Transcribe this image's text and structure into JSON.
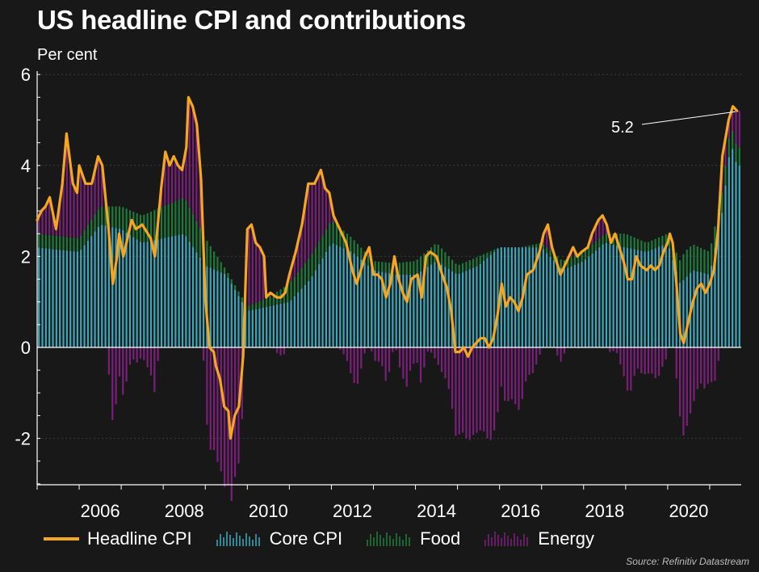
{
  "title": "US headline CPI and contributions",
  "unit_label": "Per cent",
  "source": "Source: Refinitiv Datastream",
  "colors": {
    "headline": "#f5a623",
    "core": "#3fa5b8",
    "food": "#1f7a3a",
    "energy": "#7a1f7a",
    "axis": "#ffffff",
    "grid": "#3a3a3a"
  },
  "legend": [
    {
      "key": "headline",
      "label": "Headline CPI"
    },
    {
      "key": "core",
      "label": "Core CPI"
    },
    {
      "key": "food",
      "label": "Food"
    },
    {
      "key": "energy",
      "label": "Energy"
    }
  ],
  "chart_data": {
    "type": "bar+line",
    "title": "US headline CPI and contributions",
    "ylabel": "Per cent",
    "ylim": [
      -3,
      6
    ],
    "yticks": [
      6,
      4,
      2,
      0,
      -2
    ],
    "xlim": [
      2005.0,
      2021.75
    ],
    "xticks": [
      2006,
      2008,
      2010,
      2012,
      2014,
      2016,
      2018,
      2020
    ],
    "annotation": {
      "label": "5.2",
      "x": 2021.65,
      "y": 5.2
    },
    "headline_keyframes": [
      [
        2005.0,
        2.8
      ],
      [
        2005.1,
        3.0
      ],
      [
        2005.2,
        3.1
      ],
      [
        2005.3,
        3.3
      ],
      [
        2005.45,
        2.6
      ],
      [
        2005.6,
        3.6
      ],
      [
        2005.7,
        4.7
      ],
      [
        2005.85,
        3.6
      ],
      [
        2005.95,
        3.4
      ],
      [
        2006.0,
        4.0
      ],
      [
        2006.15,
        3.6
      ],
      [
        2006.3,
        3.6
      ],
      [
        2006.45,
        4.2
      ],
      [
        2006.55,
        4.0
      ],
      [
        2006.7,
        2.6
      ],
      [
        2006.8,
        1.4
      ],
      [
        2006.9,
        2.0
      ],
      [
        2006.95,
        2.5
      ],
      [
        2007.05,
        2.0
      ],
      [
        2007.15,
        2.4
      ],
      [
        2007.25,
        2.8
      ],
      [
        2007.35,
        2.6
      ],
      [
        2007.5,
        2.7
      ],
      [
        2007.7,
        2.4
      ],
      [
        2007.8,
        2.0
      ],
      [
        2007.95,
        3.5
      ],
      [
        2008.05,
        4.3
      ],
      [
        2008.15,
        4.0
      ],
      [
        2008.25,
        4.2
      ],
      [
        2008.35,
        4.0
      ],
      [
        2008.45,
        3.9
      ],
      [
        2008.55,
        4.4
      ],
      [
        2008.6,
        5.5
      ],
      [
        2008.7,
        5.3
      ],
      [
        2008.8,
        4.9
      ],
      [
        2008.9,
        3.7
      ],
      [
        2009.0,
        1.1
      ],
      [
        2009.1,
        0.0
      ],
      [
        2009.2,
        -0.1
      ],
      [
        2009.25,
        -0.4
      ],
      [
        2009.35,
        -0.7
      ],
      [
        2009.45,
        -1.3
      ],
      [
        2009.55,
        -1.4
      ],
      [
        2009.6,
        -2.0
      ],
      [
        2009.7,
        -1.5
      ],
      [
        2009.8,
        -1.3
      ],
      [
        2009.9,
        -0.2
      ],
      [
        2010.0,
        2.6
      ],
      [
        2010.1,
        2.7
      ],
      [
        2010.2,
        2.3
      ],
      [
        2010.3,
        2.2
      ],
      [
        2010.4,
        2.0
      ],
      [
        2010.45,
        1.1
      ],
      [
        2010.55,
        1.2
      ],
      [
        2010.7,
        1.1
      ],
      [
        2010.8,
        1.1
      ],
      [
        2010.9,
        1.2
      ],
      [
        2011.0,
        1.6
      ],
      [
        2011.15,
        2.1
      ],
      [
        2011.3,
        2.7
      ],
      [
        2011.45,
        3.6
      ],
      [
        2011.6,
        3.6
      ],
      [
        2011.75,
        3.9
      ],
      [
        2011.85,
        3.5
      ],
      [
        2011.95,
        3.4
      ],
      [
        2012.05,
        2.9
      ],
      [
        2012.2,
        2.6
      ],
      [
        2012.35,
        2.3
      ],
      [
        2012.5,
        1.7
      ],
      [
        2012.6,
        1.4
      ],
      [
        2012.7,
        1.7
      ],
      [
        2012.8,
        2.0
      ],
      [
        2012.9,
        2.2
      ],
      [
        2013.0,
        1.6
      ],
      [
        2013.1,
        1.6
      ],
      [
        2013.2,
        1.5
      ],
      [
        2013.3,
        1.1
      ],
      [
        2013.4,
        1.4
      ],
      [
        2013.5,
        2.0
      ],
      [
        2013.6,
        1.5
      ],
      [
        2013.7,
        1.2
      ],
      [
        2013.8,
        1.0
      ],
      [
        2013.9,
        1.5
      ],
      [
        2014.05,
        1.6
      ],
      [
        2014.15,
        1.1
      ],
      [
        2014.25,
        2.0
      ],
      [
        2014.35,
        2.1
      ],
      [
        2014.5,
        2.0
      ],
      [
        2014.6,
        1.7
      ],
      [
        2014.75,
        1.3
      ],
      [
        2014.85,
        0.8
      ],
      [
        2014.95,
        -0.1
      ],
      [
        2015.05,
        -0.1
      ],
      [
        2015.15,
        0.0
      ],
      [
        2015.25,
        -0.2
      ],
      [
        2015.35,
        0.0
      ],
      [
        2015.45,
        0.1
      ],
      [
        2015.55,
        0.2
      ],
      [
        2015.65,
        0.2
      ],
      [
        2015.75,
        0.0
      ],
      [
        2015.85,
        0.2
      ],
      [
        2015.95,
        0.7
      ],
      [
        2016.05,
        1.4
      ],
      [
        2016.15,
        0.9
      ],
      [
        2016.25,
        1.1
      ],
      [
        2016.35,
        1.0
      ],
      [
        2016.45,
        0.8
      ],
      [
        2016.55,
        1.1
      ],
      [
        2016.65,
        1.6
      ],
      [
        2016.8,
        1.7
      ],
      [
        2016.95,
        2.1
      ],
      [
        2017.05,
        2.5
      ],
      [
        2017.15,
        2.7
      ],
      [
        2017.25,
        2.2
      ],
      [
        2017.35,
        1.9
      ],
      [
        2017.45,
        1.6
      ],
      [
        2017.6,
        1.9
      ],
      [
        2017.75,
        2.2
      ],
      [
        2017.85,
        2.0
      ],
      [
        2017.95,
        2.1
      ],
      [
        2018.1,
        2.2
      ],
      [
        2018.2,
        2.5
      ],
      [
        2018.35,
        2.8
      ],
      [
        2018.45,
        2.9
      ],
      [
        2018.55,
        2.7
      ],
      [
        2018.65,
        2.3
      ],
      [
        2018.75,
        2.5
      ],
      [
        2018.85,
        2.2
      ],
      [
        2018.95,
        1.9
      ],
      [
        2019.05,
        1.5
      ],
      [
        2019.15,
        1.5
      ],
      [
        2019.25,
        2.0
      ],
      [
        2019.35,
        1.8
      ],
      [
        2019.5,
        1.7
      ],
      [
        2019.6,
        1.8
      ],
      [
        2019.7,
        1.7
      ],
      [
        2019.8,
        1.8
      ],
      [
        2019.9,
        2.1
      ],
      [
        2020.0,
        2.3
      ],
      [
        2020.05,
        2.5
      ],
      [
        2020.12,
        2.3
      ],
      [
        2020.2,
        1.5
      ],
      [
        2020.3,
        0.3
      ],
      [
        2020.38,
        0.1
      ],
      [
        2020.5,
        0.6
      ],
      [
        2020.6,
        1.0
      ],
      [
        2020.7,
        1.3
      ],
      [
        2020.8,
        1.4
      ],
      [
        2020.9,
        1.2
      ],
      [
        2021.0,
        1.4
      ],
      [
        2021.1,
        1.7
      ],
      [
        2021.2,
        2.6
      ],
      [
        2021.3,
        4.2
      ],
      [
        2021.45,
        5.0
      ],
      [
        2021.55,
        5.3
      ],
      [
        2021.65,
        5.2
      ]
    ],
    "core_keyframes": [
      [
        2005.0,
        2.2
      ],
      [
        2006.0,
        2.1
      ],
      [
        2006.5,
        2.7
      ],
      [
        2007.0,
        2.6
      ],
      [
        2007.5,
        2.3
      ],
      [
        2008.0,
        2.4
      ],
      [
        2008.5,
        2.5
      ],
      [
        2009.0,
        1.8
      ],
      [
        2009.5,
        1.6
      ],
      [
        2010.0,
        0.8
      ],
      [
        2010.5,
        0.9
      ],
      [
        2011.0,
        1.0
      ],
      [
        2011.5,
        1.5
      ],
      [
        2012.0,
        2.3
      ],
      [
        2012.5,
        2.1
      ],
      [
        2013.0,
        1.7
      ],
      [
        2013.5,
        1.6
      ],
      [
        2014.0,
        1.6
      ],
      [
        2014.5,
        1.9
      ],
      [
        2015.0,
        1.6
      ],
      [
        2015.5,
        1.8
      ],
      [
        2016.0,
        2.2
      ],
      [
        2016.5,
        2.2
      ],
      [
        2017.0,
        2.2
      ],
      [
        2017.5,
        1.7
      ],
      [
        2018.0,
        1.9
      ],
      [
        2018.5,
        2.3
      ],
      [
        2019.0,
        2.2
      ],
      [
        2019.5,
        2.1
      ],
      [
        2020.0,
        2.3
      ],
      [
        2020.3,
        1.4
      ],
      [
        2020.6,
        1.7
      ],
      [
        2021.0,
        1.6
      ],
      [
        2021.3,
        3.0
      ],
      [
        2021.5,
        4.5
      ],
      [
        2021.65,
        4.0
      ]
    ],
    "food_keyframes": [
      [
        2005.0,
        0.3
      ],
      [
        2006.0,
        0.3
      ],
      [
        2007.0,
        0.5
      ],
      [
        2008.0,
        0.7
      ],
      [
        2008.5,
        0.8
      ],
      [
        2009.0,
        0.6
      ],
      [
        2009.5,
        0.1
      ],
      [
        2010.0,
        0.1
      ],
      [
        2010.5,
        0.2
      ],
      [
        2011.0,
        0.4
      ],
      [
        2011.5,
        0.5
      ],
      [
        2012.0,
        0.5
      ],
      [
        2012.5,
        0.3
      ],
      [
        2013.0,
        0.2
      ],
      [
        2014.0,
        0.3
      ],
      [
        2014.5,
        0.4
      ],
      [
        2015.0,
        0.2
      ],
      [
        2015.5,
        0.2
      ],
      [
        2016.0,
        0.0
      ],
      [
        2016.5,
        0.0
      ],
      [
        2017.0,
        0.1
      ],
      [
        2017.5,
        0.2
      ],
      [
        2018.0,
        0.2
      ],
      [
        2018.5,
        0.2
      ],
      [
        2019.0,
        0.3
      ],
      [
        2019.5,
        0.2
      ],
      [
        2020.0,
        0.2
      ],
      [
        2020.4,
        0.6
      ],
      [
        2021.0,
        0.5
      ],
      [
        2021.5,
        0.4
      ],
      [
        2021.65,
        0.4
      ]
    ]
  }
}
